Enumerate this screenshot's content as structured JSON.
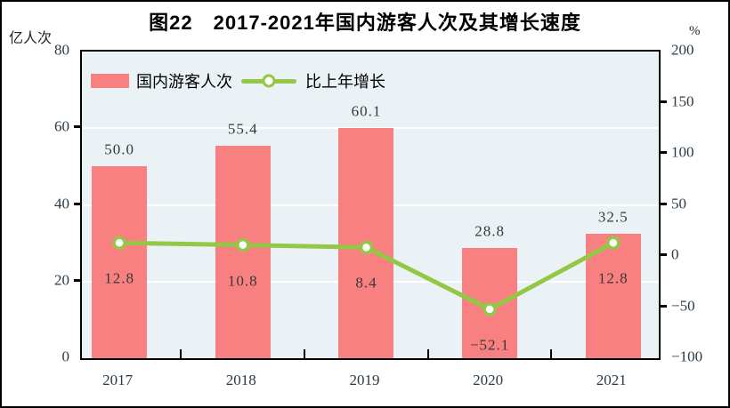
{
  "title": "图22　2017-2021年国内游客人次及其增长速度",
  "left_axis": {
    "unit": "亿人次",
    "min": 0,
    "max": 80,
    "ticks": [
      80,
      60,
      40,
      20,
      0
    ],
    "tick_labels": [
      "80",
      "60",
      "40",
      "20",
      "0"
    ],
    "grid_at": [
      60,
      40,
      20
    ]
  },
  "right_axis": {
    "unit": "%",
    "min": -100,
    "max": 200,
    "ticks": [
      200,
      150,
      100,
      50,
      0,
      -50,
      -100
    ],
    "tick_labels": [
      "200",
      "150",
      "100",
      "50",
      "0",
      "−50",
      "−100"
    ]
  },
  "legend": {
    "items": [
      {
        "label": "国内游客人次",
        "type": "bar"
      },
      {
        "label": "比上年增长",
        "type": "line"
      }
    ]
  },
  "colors": {
    "bar": "#F98080",
    "line": "#92C846",
    "marker_fill": "#FFFFFF",
    "plot_bg": "#EBF2F6",
    "grid": "#FFFFFF",
    "axis": "#000000"
  },
  "chart_data": {
    "type": "bar+line combo",
    "categories": [
      "2017",
      "2018",
      "2019",
      "2020",
      "2021"
    ],
    "series": [
      {
        "name": "国内游客人次",
        "type": "bar",
        "axis": "left",
        "values": [
          50.0,
          55.4,
          60.1,
          28.8,
          32.5
        ],
        "labels": [
          "50.0",
          "55.4",
          "60.1",
          "28.8",
          "32.5"
        ]
      },
      {
        "name": "比上年增长",
        "type": "line",
        "axis": "right",
        "values": [
          12.8,
          10.8,
          8.4,
          -52.1,
          12.8
        ],
        "labels": [
          "12.8",
          "10.8",
          "8.4",
          "−52.1",
          "12.8"
        ]
      }
    ],
    "title": "图22　2017-2021年国内游客人次及其增长速度",
    "xlabel": "",
    "ylabel_left": "亿人次",
    "ylabel_right": "%",
    "left_ylim": [
      0,
      80
    ],
    "right_ylim": [
      -100,
      200
    ],
    "grid": true,
    "legend_position": "top-left-inside"
  }
}
